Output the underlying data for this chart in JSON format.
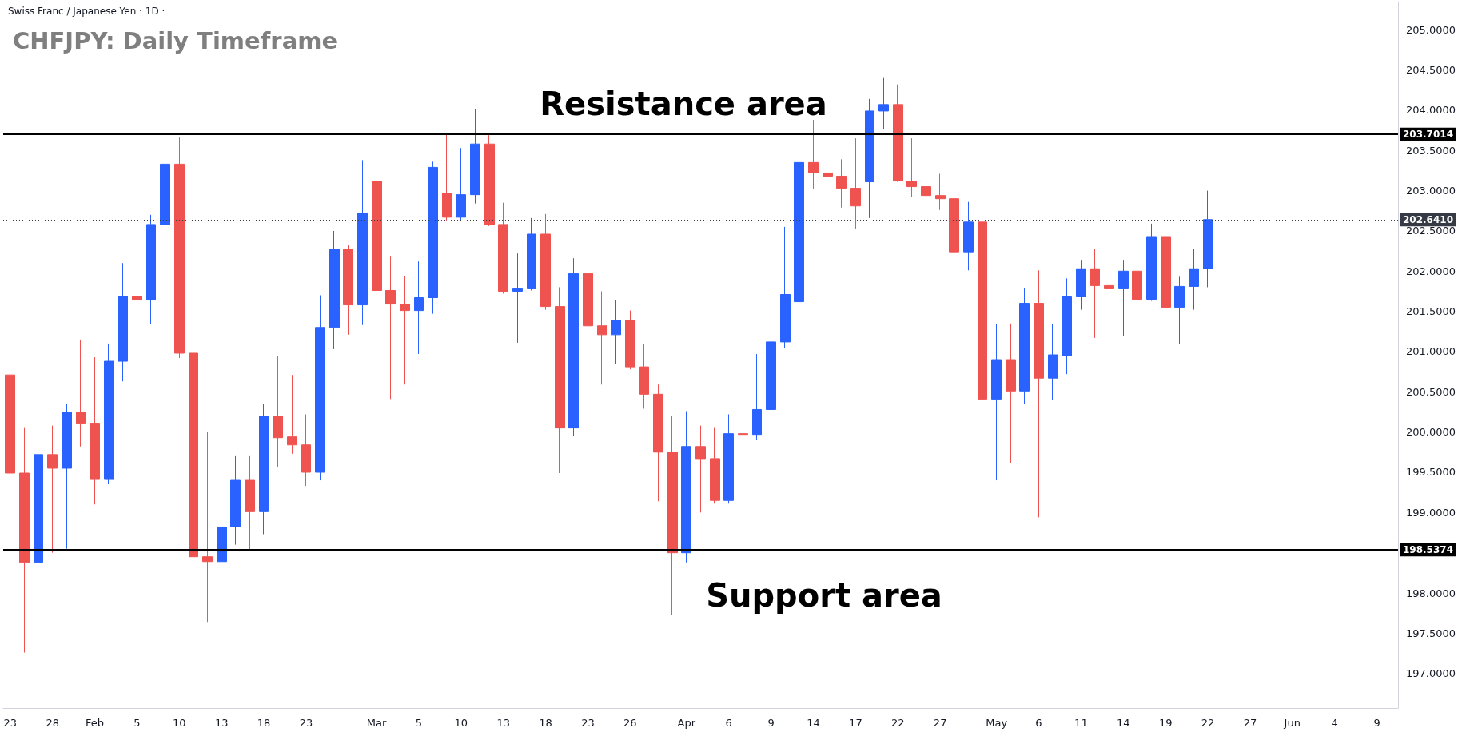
{
  "chart_data": {
    "type": "candlestick",
    "title": "CHFJPY: Daily Timeframe",
    "subtitle": "Swiss Franc / Japanese Yen · 1D ·",
    "annotations": [
      "Resistance area",
      "Support area"
    ],
    "categories": [
      "23",
      null,
      null,
      "28",
      null,
      null,
      "Feb",
      null,
      null,
      "5",
      null,
      null,
      "10",
      null,
      null,
      "13",
      null,
      null,
      "18",
      null,
      null,
      "23",
      null,
      null,
      null,
      null,
      "Mar",
      null,
      null,
      "5",
      null,
      null,
      "10",
      null,
      null,
      "13",
      null,
      null,
      "18",
      null,
      null,
      "23",
      null,
      null,
      "26",
      null,
      null,
      null,
      "Apr",
      null,
      null,
      "6",
      null,
      null,
      "9",
      null,
      null,
      "14",
      null,
      null,
      "17",
      null,
      null,
      "22",
      null,
      null,
      "27",
      null,
      null,
      null,
      "May",
      null,
      null,
      "6",
      null,
      null,
      "11",
      null,
      null,
      "14",
      null,
      null,
      "19",
      null,
      null,
      "22",
      null,
      null,
      "27",
      null,
      null,
      "Jun",
      null,
      null,
      "4",
      null,
      null,
      "9",
      null
    ],
    "ohlc": [
      [
        200.71,
        201.3,
        198.52,
        199.49
      ],
      [
        199.49,
        200.06,
        197.26,
        198.38
      ],
      [
        198.38,
        200.13,
        197.35,
        199.72
      ],
      [
        199.72,
        200.08,
        198.5,
        199.55
      ],
      [
        199.55,
        200.35,
        198.55,
        200.25
      ],
      [
        200.25,
        201.15,
        199.82,
        200.11
      ],
      [
        200.11,
        200.93,
        199.1,
        199.41
      ],
      [
        199.41,
        201.1,
        199.35,
        200.88
      ],
      [
        200.88,
        202.1,
        200.63,
        201.69
      ],
      [
        201.69,
        202.32,
        201.41,
        201.64
      ],
      [
        201.64,
        202.7,
        201.34,
        202.58
      ],
      [
        202.58,
        203.47,
        201.61,
        203.33
      ],
      [
        203.33,
        203.66,
        200.92,
        200.98
      ],
      [
        200.98,
        201.06,
        198.16,
        198.45
      ],
      [
        198.45,
        200.0,
        197.64,
        198.39
      ],
      [
        198.39,
        199.71,
        198.33,
        198.82
      ],
      [
        198.82,
        199.71,
        198.6,
        199.4
      ],
      [
        199.4,
        199.71,
        198.54,
        199.01
      ],
      [
        199.01,
        200.35,
        198.73,
        200.2
      ],
      [
        200.2,
        200.94,
        199.57,
        199.93
      ],
      [
        199.94,
        200.71,
        199.73,
        199.84
      ],
      [
        199.84,
        200.22,
        199.33,
        199.5
      ],
      [
        199.5,
        201.7,
        199.4,
        201.3
      ],
      [
        201.3,
        202.5,
        201.03,
        202.27
      ],
      [
        202.27,
        202.32,
        201.21,
        201.58
      ],
      [
        201.58,
        203.38,
        201.33,
        202.72
      ],
      [
        203.12,
        204.01,
        201.67,
        201.76
      ],
      [
        201.76,
        202.19,
        200.41,
        201.59
      ],
      [
        201.59,
        201.94,
        200.59,
        201.51
      ],
      [
        201.51,
        202.12,
        200.97,
        201.67
      ],
      [
        201.67,
        203.36,
        201.47,
        203.29
      ],
      [
        202.97,
        203.72,
        202.62,
        202.67
      ],
      [
        202.67,
        203.53,
        202.63,
        202.95
      ],
      [
        202.95,
        204.01,
        202.84,
        203.58
      ],
      [
        203.58,
        203.69,
        202.56,
        202.58
      ],
      [
        202.58,
        202.85,
        201.72,
        201.75
      ],
      [
        201.75,
        202.22,
        201.11,
        201.78
      ],
      [
        201.78,
        202.66,
        201.76,
        202.46
      ],
      [
        202.46,
        202.71,
        201.52,
        201.56
      ],
      [
        201.56,
        201.8,
        199.49,
        200.05
      ],
      [
        200.05,
        202.16,
        199.95,
        201.97
      ],
      [
        201.97,
        202.42,
        200.5,
        201.32
      ],
      [
        201.32,
        201.75,
        200.59,
        201.21
      ],
      [
        201.21,
        201.64,
        200.85,
        201.39
      ],
      [
        201.39,
        201.51,
        200.78,
        200.81
      ],
      [
        200.81,
        201.09,
        200.29,
        200.47
      ],
      [
        200.47,
        200.59,
        199.14,
        199.75
      ],
      [
        199.75,
        200.2,
        197.73,
        198.5
      ],
      [
        198.5,
        200.26,
        198.38,
        199.82
      ],
      [
        199.82,
        200.08,
        199.0,
        199.67
      ],
      [
        199.67,
        200.06,
        199.11,
        199.15
      ],
      [
        199.15,
        200.22,
        199.11,
        199.98
      ],
      [
        199.98,
        200.17,
        199.64,
        199.97
      ],
      [
        199.97,
        200.97,
        199.9,
        200.28
      ],
      [
        200.28,
        201.66,
        200.15,
        201.12
      ],
      [
        201.12,
        202.55,
        201.04,
        201.71
      ],
      [
        201.62,
        203.44,
        201.39,
        203.35
      ],
      [
        203.35,
        203.88,
        203.02,
        203.22
      ],
      [
        203.22,
        203.58,
        203.07,
        203.18
      ],
      [
        203.18,
        203.39,
        202.79,
        203.03
      ],
      [
        203.03,
        203.65,
        202.53,
        202.81
      ],
      [
        203.11,
        204.14,
        202.66,
        203.99
      ],
      [
        203.99,
        204.41,
        203.76,
        204.07
      ],
      [
        204.07,
        204.32,
        203.11,
        203.12
      ],
      [
        203.12,
        203.65,
        202.92,
        203.05
      ],
      [
        203.05,
        203.27,
        202.66,
        202.94
      ],
      [
        202.94,
        203.21,
        202.76,
        202.9
      ],
      [
        202.9,
        203.07,
        201.81,
        202.24
      ],
      [
        202.24,
        202.86,
        202.01,
        202.61
      ],
      [
        202.61,
        203.09,
        198.24,
        200.41
      ],
      [
        200.41,
        201.34,
        199.4,
        200.9
      ],
      [
        200.9,
        201.35,
        199.61,
        200.51
      ],
      [
        200.51,
        201.79,
        200.35,
        201.6
      ],
      [
        201.6,
        202.01,
        198.94,
        200.67
      ],
      [
        200.67,
        201.34,
        200.4,
        200.96
      ],
      [
        200.95,
        201.91,
        200.72,
        201.68
      ],
      [
        201.68,
        202.14,
        201.52,
        202.03
      ],
      [
        202.03,
        202.28,
        201.17,
        201.82
      ],
      [
        201.82,
        202.13,
        201.5,
        201.78
      ],
      [
        201.78,
        202.14,
        201.19,
        202.0
      ],
      [
        202.0,
        202.08,
        201.48,
        201.65
      ],
      [
        201.65,
        202.59,
        201.63,
        202.43
      ],
      [
        202.43,
        202.56,
        201.07,
        201.55
      ],
      [
        201.55,
        201.93,
        201.09,
        201.81
      ],
      [
        201.81,
        202.28,
        201.52,
        202.03
      ],
      [
        202.03,
        203.0,
        201.8,
        202.641
      ],
      null,
      null,
      null,
      null,
      null,
      null,
      null,
      null,
      null,
      null,
      null,
      null,
      null
    ],
    "colors": [
      "#ef5350",
      "#ef5350",
      "#2962ff",
      "#ef5350",
      "#2962ff",
      "#ef5350",
      "#ef5350",
      "#2962ff",
      "#2962ff",
      "#ef5350",
      "#2962ff",
      "#2962ff",
      "#ef5350",
      "#ef5350",
      "#ef5350",
      "#2962ff",
      "#2962ff",
      "#ef5350",
      "#2962ff",
      "#ef5350",
      "#ef5350",
      "#ef5350",
      "#2962ff",
      "#2962ff",
      "#ef5350",
      "#2962ff",
      "#ef5350",
      "#ef5350",
      "#ef5350",
      "#2962ff",
      "#2962ff",
      "#ef5350",
      "#2962ff",
      "#2962ff",
      "#ef5350",
      "#ef5350",
      "#2962ff",
      "#2962ff",
      "#ef5350",
      "#ef5350",
      "#2962ff",
      "#ef5350",
      "#ef5350",
      "#2962ff",
      "#ef5350",
      "#ef5350",
      "#ef5350",
      "#ef5350",
      "#2962ff",
      "#ef5350",
      "#ef5350",
      "#2962ff",
      "#ef5350",
      "#2962ff",
      "#2962ff",
      "#2962ff",
      "#2962ff",
      "#ef5350",
      "#ef5350",
      "#ef5350",
      "#ef5350",
      "#2962ff",
      "#2962ff",
      "#ef5350",
      "#ef5350",
      "#ef5350",
      "#ef5350",
      "#ef5350",
      "#2962ff",
      "#ef5350",
      "#2962ff",
      "#ef5350",
      "#2962ff",
      "#ef5350",
      "#2962ff",
      "#2962ff",
      "#2962ff",
      "#ef5350",
      "#ef5350",
      "#2962ff",
      "#ef5350",
      "#2962ff",
      "#ef5350",
      "#2962ff",
      "#2962ff",
      "#2962ff",
      null,
      null,
      null,
      null,
      null,
      null,
      null,
      null,
      null,
      null,
      null,
      null,
      null
    ],
    "ylim": [
      196.57,
      205.35
    ],
    "yticks": [
      {
        "value": 197,
        "label": "197.0000"
      },
      {
        "value": 197.5,
        "label": "197.5000"
      },
      {
        "value": 198,
        "label": "198.0000"
      },
      {
        "value": 199,
        "label": "199.0000"
      },
      {
        "value": 199.5,
        "label": "199.5000"
      },
      {
        "value": 200,
        "label": "200.0000"
      },
      {
        "value": 200.5,
        "label": "200.5000"
      },
      {
        "value": 201,
        "label": "201.0000"
      },
      {
        "value": 201.5,
        "label": "201.5000"
      },
      {
        "value": 202,
        "label": "202.0000"
      },
      {
        "value": 202.5,
        "label": "202.5000"
      },
      {
        "value": 203,
        "label": "203.0000"
      },
      {
        "value": 203.5,
        "label": "203.5000"
      },
      {
        "value": 204,
        "label": "204.0000"
      },
      {
        "value": 204.5,
        "label": "204.5000"
      },
      {
        "value": 205,
        "label": "205.0000"
      }
    ],
    "ref_lines": [
      {
        "axis": "y",
        "value": 203.7014,
        "label": "203.7014",
        "color": "#000000",
        "line_style": "solid"
      },
      {
        "axis": "y",
        "value": 198.5374,
        "label": "198.5374",
        "color": "#000000",
        "line_style": "solid"
      },
      {
        "axis": "y",
        "value": 202.641,
        "label": "202.6410",
        "color": "#363a45",
        "line_style": "dotted"
      }
    ]
  }
}
